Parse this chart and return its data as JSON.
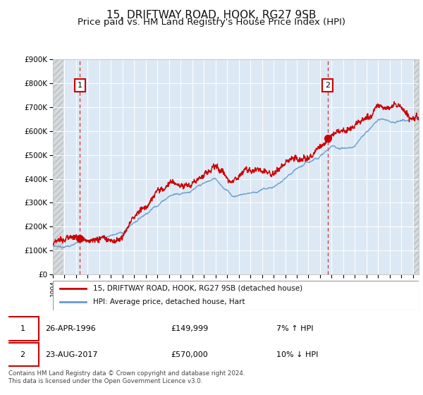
{
  "title": "15, DRIFTWAY ROAD, HOOK, RG27 9SB",
  "subtitle": "Price paid vs. HM Land Registry's House Price Index (HPI)",
  "ylim": [
    0,
    900000
  ],
  "yticks": [
    0,
    100000,
    200000,
    300000,
    400000,
    500000,
    600000,
    700000,
    800000,
    900000
  ],
  "ytick_labels": [
    "£0",
    "£100K",
    "£200K",
    "£300K",
    "£400K",
    "£500K",
    "£600K",
    "£700K",
    "£800K",
    "£900K"
  ],
  "plot_bg": "#dce9f5",
  "hatch_color": "#c8c8c8",
  "grid_color": "#ffffff",
  "sale1_x": 1996.32,
  "sale1_y": 149999,
  "sale2_x": 2017.65,
  "sale2_y": 570000,
  "legend_label_red": "15, DRIFTWAY ROAD, HOOK, RG27 9SB (detached house)",
  "legend_label_blue": "HPI: Average price, detached house, Hart",
  "red_color": "#cc0000",
  "blue_color": "#6699cc",
  "xmin": 1994,
  "xmax": 2025.5,
  "title_fontsize": 11,
  "subtitle_fontsize": 9.5,
  "footer": "Contains HM Land Registry data © Crown copyright and database right 2024.\nThis data is licensed under the Open Government Licence v3.0."
}
